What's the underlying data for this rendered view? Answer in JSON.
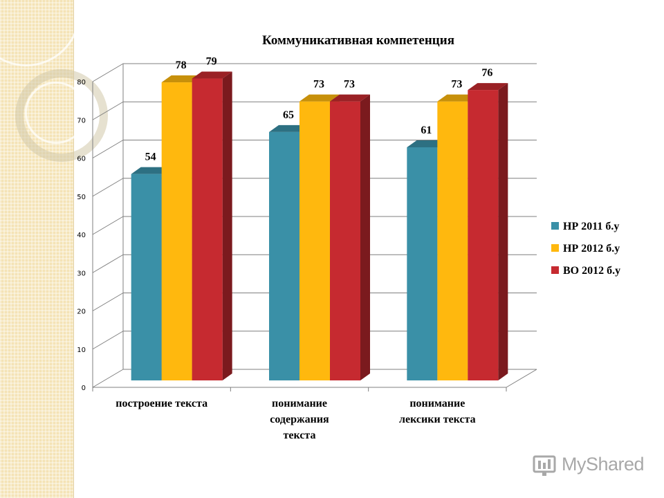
{
  "chart_data": {
    "type": "bar",
    "title": "Коммуникативная компетенция",
    "categories": [
      [
        "построение текста"
      ],
      [
        "понимание",
        "содержания",
        "текста"
      ],
      [
        "понимание",
        "лексики текста"
      ]
    ],
    "series": [
      {
        "name": "НР 2011 б.у",
        "values": [
          54,
          65,
          61
        ],
        "color": "#3a90a7"
      },
      {
        "name": "НР 2012 б.у",
        "values": [
          78,
          73,
          73
        ],
        "color": "#ffb80e"
      },
      {
        "name": "ВО 2012 б.у",
        "values": [
          79,
          73,
          76
        ],
        "color": "#c62a30"
      }
    ],
    "ylim": [
      0,
      80
    ],
    "yticks": [
      "0",
      "10",
      "20",
      "30",
      "40",
      "50",
      "60",
      "70",
      "80"
    ],
    "grid": true,
    "legend": "right"
  },
  "watermark": {
    "text": "MyShared"
  }
}
